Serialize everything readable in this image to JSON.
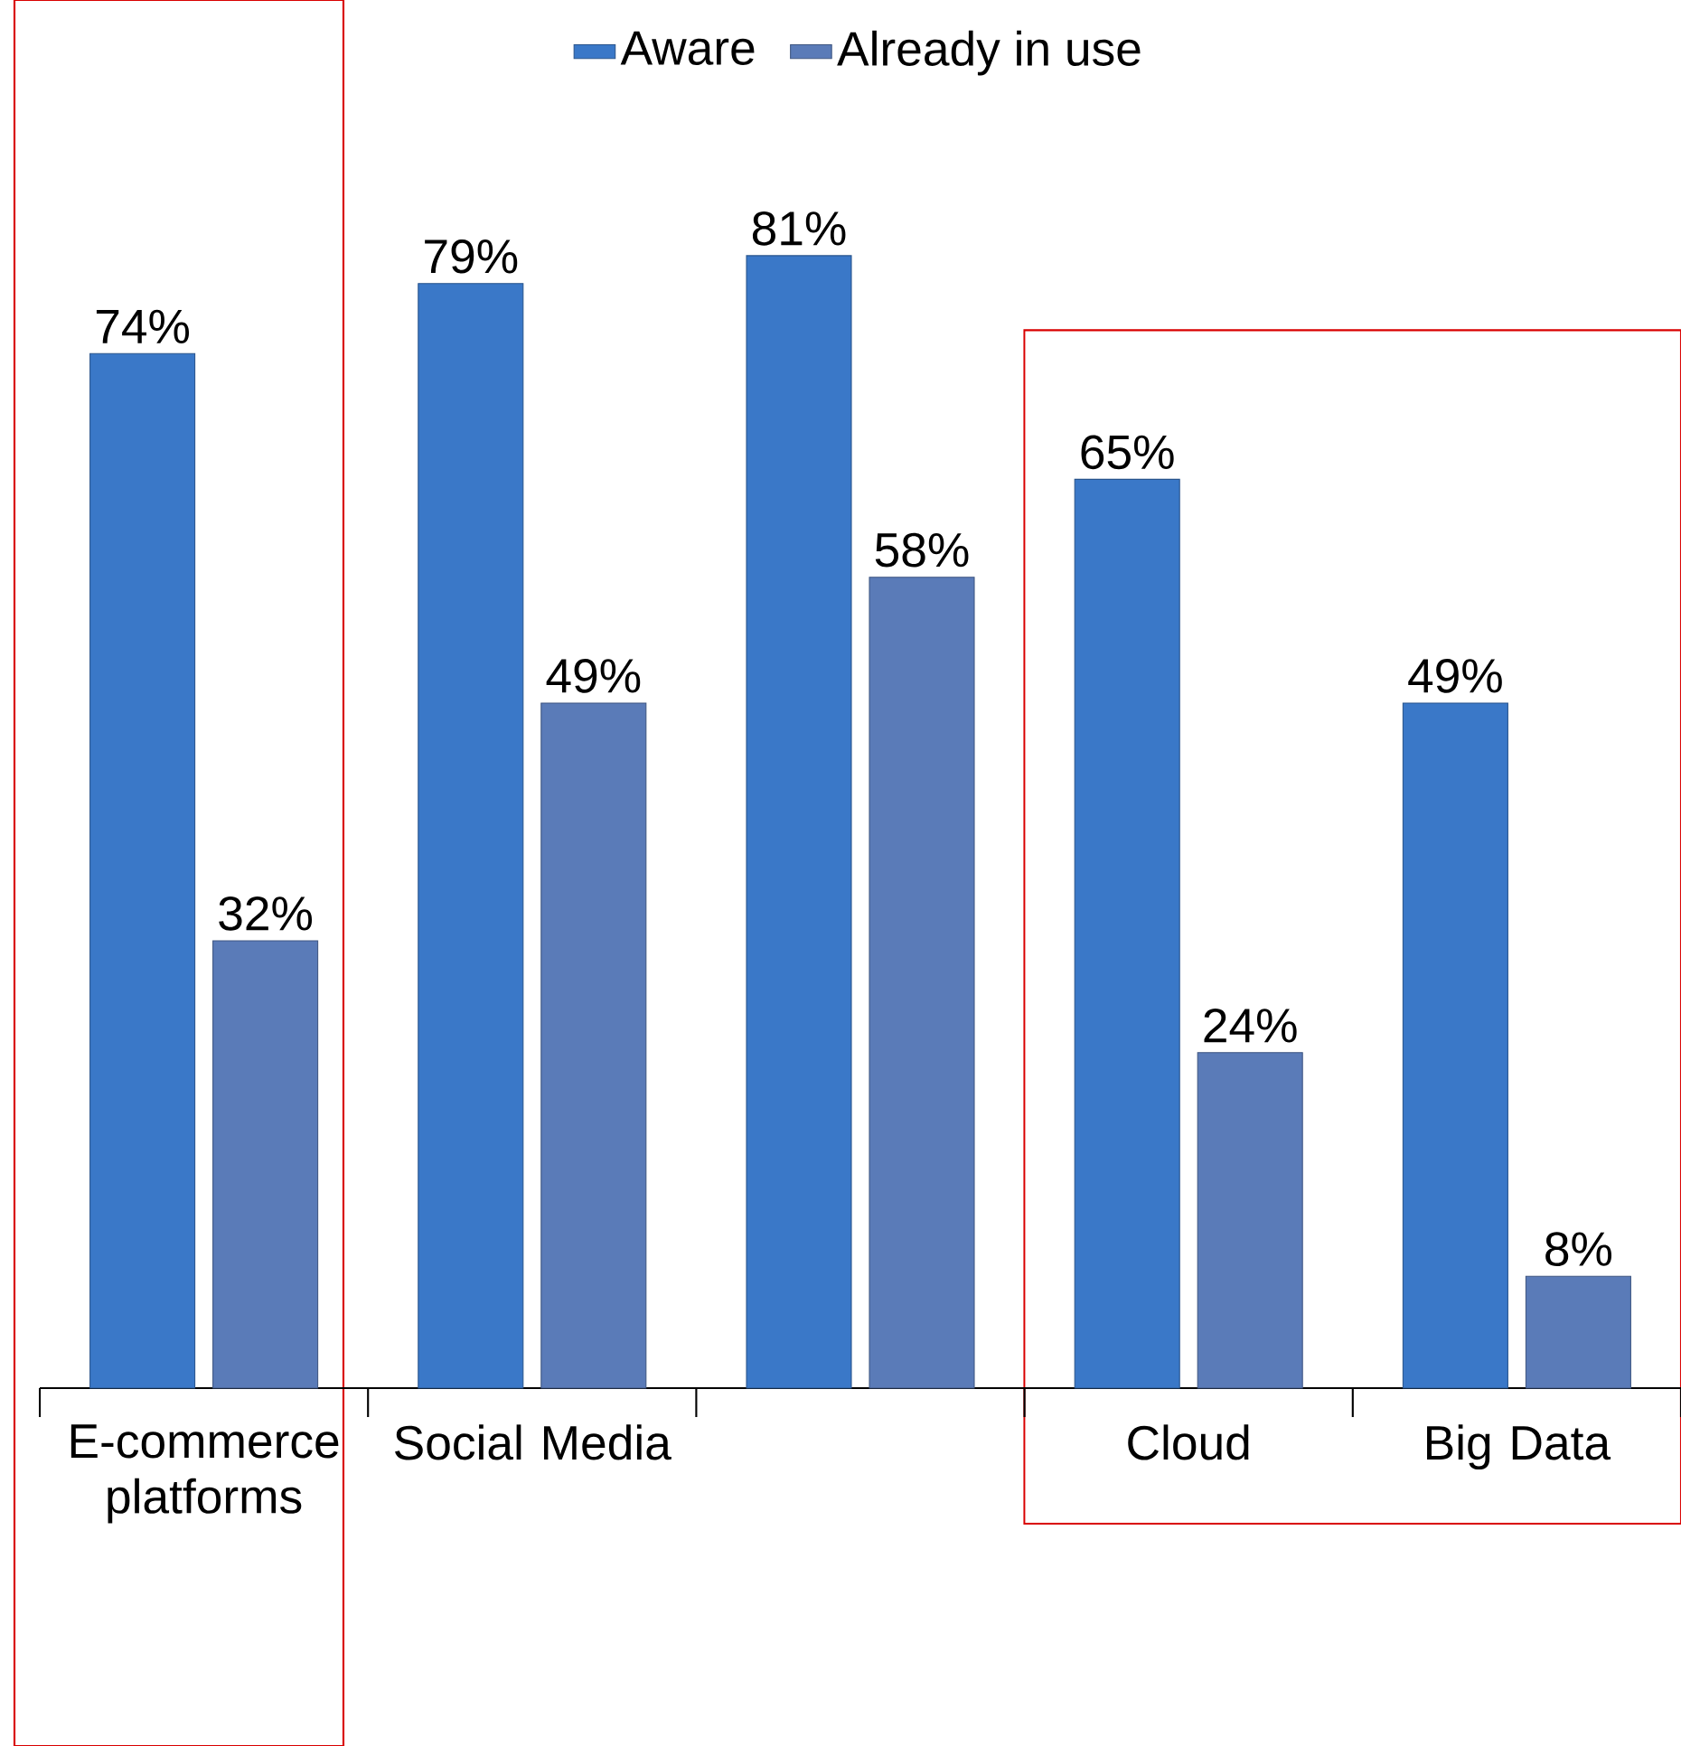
{
  "chart_data": {
    "type": "bar",
    "categories": [
      "E-commerce platforms",
      "Social Media",
      null,
      "Cloud",
      "Big Data"
    ],
    "series": [
      {
        "name": "Aware",
        "color": "#3a78c8",
        "values": [
          74,
          79,
          81,
          65,
          49
        ],
        "value_labels": [
          "74%",
          "79%",
          "81%",
          "65%",
          "49%"
        ]
      },
      {
        "name": "Already in use",
        "color": "#5a7bb8",
        "values": [
          32,
          49,
          58,
          24,
          8
        ],
        "value_labels": [
          "32%",
          "49%",
          "58%",
          "24%",
          "8%"
        ]
      }
    ],
    "legend": "top"
  }
}
